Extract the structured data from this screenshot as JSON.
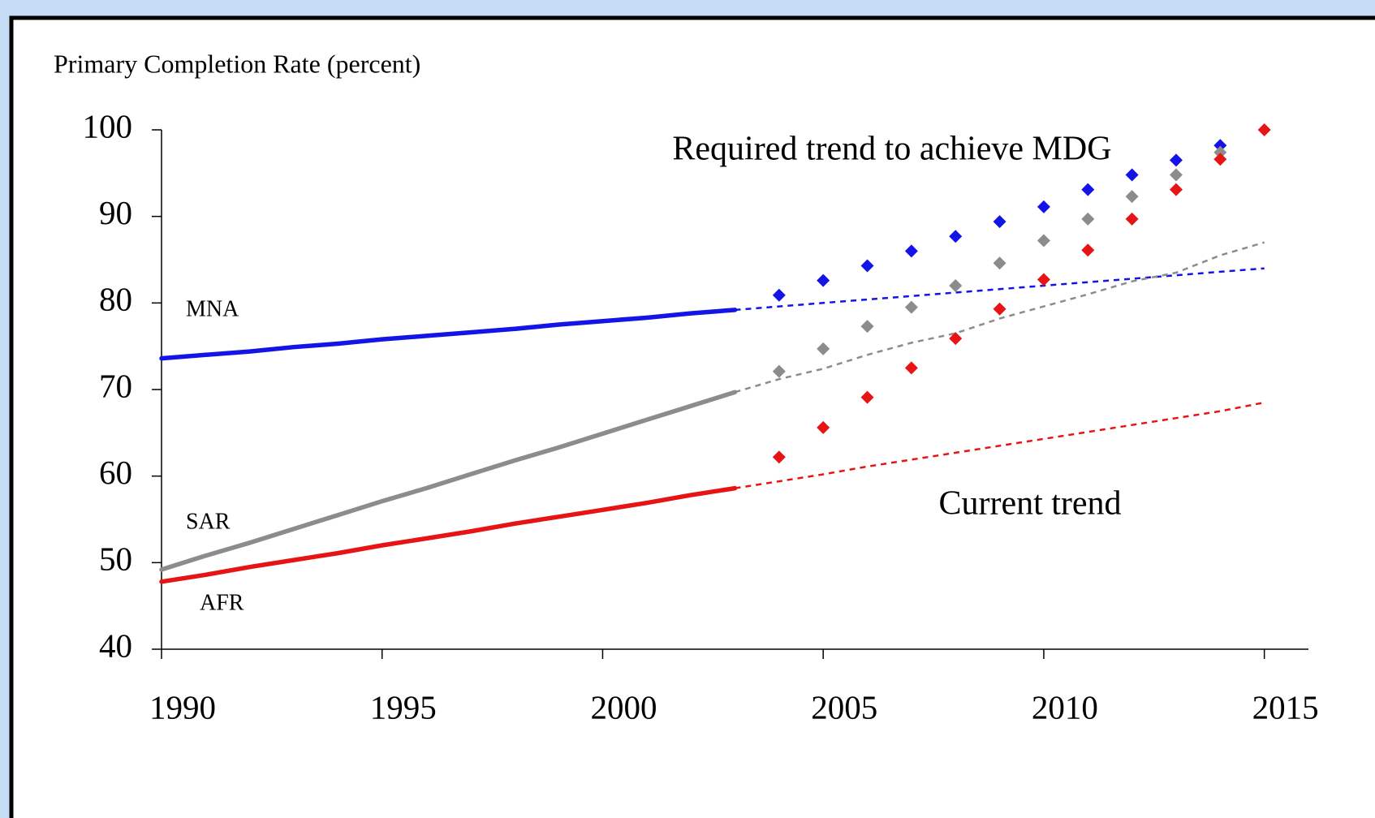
{
  "chart_data": {
    "type": "line",
    "title": "Primary Completion Rate (percent)",
    "annotations": {
      "required_label": "Required trend to achieve MDG",
      "trend_label": "Current trend"
    },
    "xlim": [
      1990,
      2016
    ],
    "xticks": [
      1990,
      1995,
      2000,
      2005,
      2010,
      2015
    ],
    "ylim": [
      40,
      100
    ],
    "yticks": [
      40,
      50,
      60,
      70,
      80,
      90,
      100
    ],
    "series": [
      {
        "name": "MNA",
        "color": "#1414e6",
        "x": [
          1990,
          1991,
          1992,
          1993,
          1994,
          1995,
          1996,
          1997,
          1998,
          1999,
          2000,
          2001,
          2002,
          2003
        ],
        "values": [
          73.6,
          74.0,
          74.4,
          74.9,
          75.3,
          75.8,
          76.2,
          76.6,
          77.0,
          77.5,
          77.9,
          78.3,
          78.8,
          79.2
        ],
        "trend": {
          "x": [
            2003,
            2004,
            2005,
            2006,
            2007,
            2008,
            2009,
            2010,
            2011,
            2012,
            2013,
            2014,
            2015
          ],
          "values": [
            79.2,
            79.6,
            80.0,
            80.4,
            80.8,
            81.2,
            81.6,
            82.0,
            82.4,
            82.8,
            83.2,
            83.6,
            84.0
          ]
        },
        "required": {
          "x": [
            2004,
            2005,
            2006,
            2007,
            2008,
            2009,
            2010,
            2011,
            2012,
            2013,
            2014
          ],
          "values": [
            80.9,
            82.6,
            84.3,
            86.0,
            87.7,
            89.4,
            91.1,
            93.1,
            94.8,
            96.5,
            98.2
          ]
        }
      },
      {
        "name": "SAR",
        "color": "#8c8c8c",
        "x": [
          1990,
          1991,
          1992,
          1993,
          1994,
          1995,
          1996,
          1997,
          1998,
          1999,
          2000,
          2001,
          2002,
          2003
        ],
        "values": [
          49.2,
          50.8,
          52.3,
          53.9,
          55.5,
          57.1,
          58.6,
          60.2,
          61.8,
          63.3,
          64.9,
          66.5,
          68.1,
          69.7
        ],
        "trend": {
          "x": [
            2003,
            2004,
            2005,
            2006,
            2007,
            2008,
            2009,
            2010,
            2011,
            2012,
            2013,
            2014,
            2015
          ],
          "values": [
            69.7,
            71.2,
            72.4,
            74.0,
            75.4,
            76.5,
            78.2,
            79.6,
            81.0,
            82.5,
            83.5,
            85.5,
            87.0
          ]
        },
        "required": {
          "x": [
            2004,
            2005,
            2006,
            2007,
            2008,
            2009,
            2010,
            2011,
            2012,
            2013,
            2014
          ],
          "values": [
            72.1,
            74.7,
            77.3,
            79.5,
            82.0,
            84.6,
            87.2,
            89.7,
            92.3,
            94.8,
            97.4
          ]
        }
      },
      {
        "name": "AFR",
        "color": "#e61414",
        "x": [
          1990,
          1991,
          1992,
          1993,
          1994,
          1995,
          1996,
          1997,
          1998,
          1999,
          2000,
          2001,
          2002,
          2003
        ],
        "values": [
          47.8,
          48.6,
          49.5,
          50.3,
          51.1,
          52.0,
          52.8,
          53.6,
          54.5,
          55.3,
          56.1,
          56.9,
          57.8,
          58.6
        ],
        "trend": {
          "x": [
            2003,
            2004,
            2005,
            2006,
            2007,
            2008,
            2009,
            2010,
            2011,
            2012,
            2013,
            2014,
            2015
          ],
          "values": [
            58.6,
            59.4,
            60.2,
            61.1,
            61.9,
            62.7,
            63.5,
            64.3,
            65.1,
            65.9,
            66.7,
            67.5,
            68.5
          ]
        },
        "required": {
          "x": [
            2004,
            2005,
            2006,
            2007,
            2008,
            2009,
            2010,
            2011,
            2012,
            2013,
            2014,
            2015
          ],
          "values": [
            62.2,
            65.6,
            69.1,
            72.5,
            75.9,
            79.3,
            82.7,
            86.1,
            89.7,
            93.1,
            96.6,
            100.0
          ]
        }
      }
    ]
  }
}
